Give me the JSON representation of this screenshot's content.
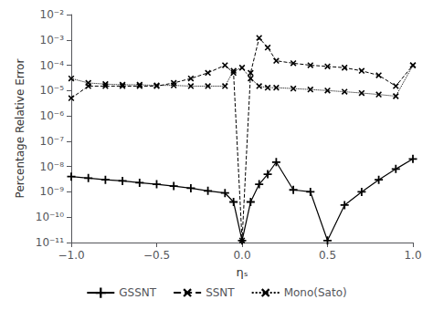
{
  "chart_data": {
    "type": "line",
    "title": "",
    "xlabel": "ηₛ",
    "ylabel": "Percentage Relative Error",
    "log": "y",
    "grid": false,
    "legend": "bottom",
    "xlim": [
      -1,
      1
    ],
    "xticks": [
      {
        "value": -1,
        "label": "−1.0"
      },
      {
        "value": -0.5,
        "label": "−0.5"
      },
      {
        "value": 0,
        "label": "0.0"
      },
      {
        "value": 0.5,
        "label": "0.5"
      },
      {
        "value": 1,
        "label": "1.0"
      }
    ],
    "ylim": [
      1e-11,
      0.01
    ],
    "yticks": [
      {
        "value": 1e-11,
        "label": "10⁻¹¹"
      },
      {
        "value": 1e-10,
        "label": "10⁻¹⁰"
      },
      {
        "value": 1e-09,
        "label": "10⁻⁹"
      },
      {
        "value": 1e-08,
        "label": "10⁻⁸"
      },
      {
        "value": 1e-07,
        "label": "10⁻⁷"
      },
      {
        "value": 1e-06,
        "label": "10⁻⁶"
      },
      {
        "value": 1e-05,
        "label": "10⁻⁵"
      },
      {
        "value": 0.0001,
        "label": "10⁻⁴"
      },
      {
        "value": 0.001,
        "label": "10⁻³"
      },
      {
        "value": 0.01,
        "label": "10⁻²"
      }
    ],
    "x": [
      -1.0,
      -0.9,
      -0.8,
      -0.7,
      -0.6,
      -0.5,
      -0.4,
      -0.3,
      -0.2,
      -0.1,
      -0.05,
      0.0,
      0.05,
      0.1,
      0.15,
      0.2,
      0.3,
      0.4,
      0.5,
      0.6,
      0.7,
      0.8,
      0.9,
      1.0
    ],
    "series": [
      {
        "name": "GSSNT",
        "color": "#000000",
        "line_style": "solid",
        "marker": "plus",
        "values": [
          4e-09,
          3.5e-09,
          3e-09,
          2.7e-09,
          2.3e-09,
          2e-09,
          1.7e-09,
          1.4e-09,
          1.1e-09,
          9e-10,
          4e-10,
          1.2e-11,
          4e-10,
          2e-09,
          5e-09,
          1.5e-08,
          1.2e-09,
          1e-09,
          1.2e-11,
          3e-10,
          1e-09,
          3e-09,
          8e-09,
          2e-08
        ]
      },
      {
        "name": "SSNT",
        "color": "#000000",
        "line_style": "dashed",
        "marker": "x",
        "values": [
          5e-06,
          1.5e-05,
          1.5e-05,
          1.5e-05,
          1.5e-05,
          1.5e-05,
          2e-05,
          3e-05,
          5e-05,
          0.0001,
          5e-05,
          1.2e-11,
          5e-05,
          0.0012,
          0.0005,
          0.00015,
          0.00012,
          0.0001,
          9e-05,
          8e-05,
          6e-05,
          4e-05,
          1.5e-05,
          0.0001
        ]
      },
      {
        "name": "Mono(Sato)",
        "color": "#000000",
        "line_style": "dotted",
        "marker": "x",
        "values": [
          3e-05,
          2e-05,
          1.8e-05,
          1.7e-05,
          1.7e-05,
          1.6e-05,
          1.6e-05,
          1.5e-05,
          1.5e-05,
          1.5e-05,
          6e-05,
          8e-05,
          3e-05,
          1.5e-05,
          1.3e-05,
          1.3e-05,
          1.2e-05,
          1.1e-05,
          1e-05,
          9e-06,
          8e-06,
          7e-06,
          6e-06,
          0.0001
        ]
      }
    ]
  }
}
